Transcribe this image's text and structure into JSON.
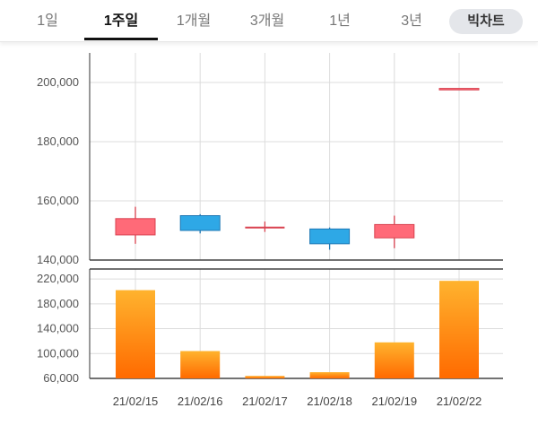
{
  "tabs": [
    {
      "label": "1일",
      "active": false
    },
    {
      "label": "1주일",
      "active": true
    },
    {
      "label": "1개월",
      "active": false
    },
    {
      "label": "3개월",
      "active": false
    },
    {
      "label": "1년",
      "active": false
    },
    {
      "label": "3년",
      "active": false
    }
  ],
  "toggle_label": "빅차트",
  "colors": {
    "up": "#ff6a78",
    "up_border": "#d9414f",
    "down": "#2ea8e6",
    "down_border": "#1f78b4",
    "volume_top": "#ffb32e",
    "volume_bottom": "#ff6a00"
  },
  "chart_data": [
    {
      "type": "candlestick",
      "title": "",
      "categories": [
        "21/02/15",
        "21/02/16",
        "21/02/17",
        "21/02/18",
        "21/02/19",
        "21/02/22"
      ],
      "ylim": [
        140000,
        210000
      ],
      "yticks": [
        "140,000",
        "160,000",
        "180,000",
        "200,000"
      ],
      "ytick_values": [
        140000,
        160000,
        180000,
        200000
      ],
      "ohlc": [
        {
          "date": "21/02/15",
          "open": 148500,
          "high": 158000,
          "low": 145500,
          "close": 154000
        },
        {
          "date": "21/02/16",
          "open": 155000,
          "high": 155500,
          "low": 149000,
          "close": 150000
        },
        {
          "date": "21/02/17",
          "open": 151000,
          "high": 153000,
          "low": 149500,
          "close": 151000
        },
        {
          "date": "21/02/18",
          "open": 150500,
          "high": 151000,
          "low": 143500,
          "close": 145500
        },
        {
          "date": "21/02/19",
          "open": 147500,
          "high": 155000,
          "low": 144000,
          "close": 152000
        },
        {
          "date": "21/02/22",
          "open": 197500,
          "high": 198000,
          "low": 197500,
          "close": 198000
        }
      ],
      "grid": true
    },
    {
      "type": "bar",
      "title": "",
      "categories": [
        "21/02/15",
        "21/02/16",
        "21/02/17",
        "21/02/18",
        "21/02/19",
        "21/02/22"
      ],
      "values": [
        202000,
        104000,
        64000,
        70000,
        118000,
        217000
      ],
      "ylim": [
        60000,
        236000
      ],
      "yticks": [
        "60,000",
        "100,000",
        "140,000",
        "180,000",
        "220,000"
      ],
      "ytick_values": [
        60000,
        100000,
        140000,
        180000,
        220000
      ],
      "grid": true
    }
  ]
}
